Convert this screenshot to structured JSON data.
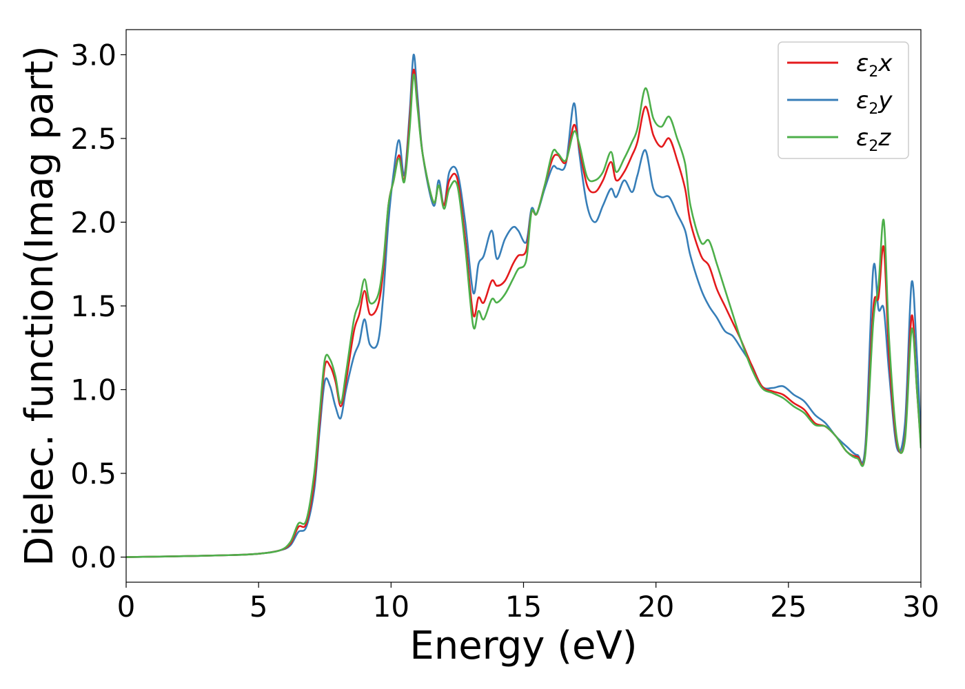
{
  "chart_data": {
    "type": "line",
    "title": "",
    "xlabel": "Energy (eV)",
    "ylabel": "Dielec. function(Imag part)",
    "xlim": [
      0,
      30
    ],
    "ylim": [
      -0.15,
      3.15
    ],
    "xticks": [
      0,
      5,
      10,
      15,
      20,
      25,
      30
    ],
    "yticks": [
      0.0,
      0.5,
      1.0,
      1.5,
      2.0,
      2.5,
      3.0
    ],
    "xtick_labels": [
      "0",
      "5",
      "10",
      "15",
      "20",
      "25",
      "30"
    ],
    "ytick_labels": [
      "0.0",
      "0.5",
      "1.0",
      "1.5",
      "2.0",
      "2.5",
      "3.0"
    ],
    "grid": false,
    "legend_position": "top-right",
    "series": [
      {
        "name": "ε₂x",
        "legend_base": "ε",
        "legend_sub": "2",
        "legend_tail": "x",
        "color": "#e41a1c",
        "points": [
          [
            0,
            0.0
          ],
          [
            2,
            0.005
          ],
          [
            4,
            0.012
          ],
          [
            5,
            0.02
          ],
          [
            5.8,
            0.04
          ],
          [
            6.2,
            0.08
          ],
          [
            6.5,
            0.18
          ],
          [
            6.8,
            0.2
          ],
          [
            7.1,
            0.45
          ],
          [
            7.3,
            0.8
          ],
          [
            7.5,
            1.14
          ],
          [
            7.7,
            1.14
          ],
          [
            7.9,
            1.05
          ],
          [
            8.1,
            0.9
          ],
          [
            8.3,
            1.05
          ],
          [
            8.6,
            1.35
          ],
          [
            8.8,
            1.45
          ],
          [
            9.0,
            1.59
          ],
          [
            9.2,
            1.45
          ],
          [
            9.5,
            1.5
          ],
          [
            9.7,
            1.7
          ],
          [
            9.9,
            2.1
          ],
          [
            10.1,
            2.25
          ],
          [
            10.3,
            2.4
          ],
          [
            10.5,
            2.25
          ],
          [
            10.7,
            2.6
          ],
          [
            10.85,
            2.91
          ],
          [
            11.0,
            2.7
          ],
          [
            11.2,
            2.4
          ],
          [
            11.6,
            2.12
          ],
          [
            11.8,
            2.22
          ],
          [
            12.0,
            2.1
          ],
          [
            12.2,
            2.25
          ],
          [
            12.5,
            2.26
          ],
          [
            12.8,
            1.9
          ],
          [
            13.1,
            1.45
          ],
          [
            13.3,
            1.55
          ],
          [
            13.5,
            1.52
          ],
          [
            13.8,
            1.65
          ],
          [
            14.0,
            1.62
          ],
          [
            14.3,
            1.65
          ],
          [
            14.6,
            1.75
          ],
          [
            14.8,
            1.8
          ],
          [
            15.1,
            1.83
          ],
          [
            15.3,
            2.06
          ],
          [
            15.5,
            2.05
          ],
          [
            15.8,
            2.22
          ],
          [
            16.1,
            2.38
          ],
          [
            16.3,
            2.4
          ],
          [
            16.6,
            2.36
          ],
          [
            16.9,
            2.58
          ],
          [
            17.1,
            2.45
          ],
          [
            17.4,
            2.22
          ],
          [
            17.7,
            2.18
          ],
          [
            18.0,
            2.25
          ],
          [
            18.3,
            2.36
          ],
          [
            18.5,
            2.25
          ],
          [
            18.8,
            2.3
          ],
          [
            19.1,
            2.4
          ],
          [
            19.3,
            2.48
          ],
          [
            19.6,
            2.69
          ],
          [
            19.9,
            2.52
          ],
          [
            20.2,
            2.45
          ],
          [
            20.5,
            2.5
          ],
          [
            20.8,
            2.37
          ],
          [
            21.1,
            2.2
          ],
          [
            21.3,
            2.0
          ],
          [
            21.7,
            1.8
          ],
          [
            22.0,
            1.74
          ],
          [
            22.3,
            1.6
          ],
          [
            22.6,
            1.5
          ],
          [
            22.9,
            1.4
          ],
          [
            23.2,
            1.3
          ],
          [
            23.6,
            1.15
          ],
          [
            24.0,
            1.02
          ],
          [
            24.4,
            0.99
          ],
          [
            24.8,
            0.97
          ],
          [
            25.2,
            0.92
          ],
          [
            25.6,
            0.88
          ],
          [
            26.0,
            0.8
          ],
          [
            26.4,
            0.78
          ],
          [
            26.8,
            0.72
          ],
          [
            27.2,
            0.63
          ],
          [
            27.6,
            0.6
          ],
          [
            27.9,
            0.62
          ],
          [
            28.2,
            1.48
          ],
          [
            28.4,
            1.55
          ],
          [
            28.6,
            1.85
          ],
          [
            28.8,
            1.2
          ],
          [
            29.1,
            0.68
          ],
          [
            29.4,
            0.72
          ],
          [
            29.65,
            1.44
          ],
          [
            29.85,
            1.0
          ],
          [
            30.0,
            0.67
          ]
        ]
      },
      {
        "name": "ε₂y",
        "legend_base": "ε",
        "legend_sub": "2",
        "legend_tail": "y",
        "color": "#377eb8",
        "points": [
          [
            0,
            0.0
          ],
          [
            2,
            0.005
          ],
          [
            4,
            0.012
          ],
          [
            5,
            0.02
          ],
          [
            5.8,
            0.04
          ],
          [
            6.2,
            0.07
          ],
          [
            6.5,
            0.15
          ],
          [
            6.8,
            0.18
          ],
          [
            7.1,
            0.4
          ],
          [
            7.3,
            0.75
          ],
          [
            7.5,
            1.05
          ],
          [
            7.7,
            1.02
          ],
          [
            7.9,
            0.9
          ],
          [
            8.1,
            0.83
          ],
          [
            8.3,
            1.0
          ],
          [
            8.6,
            1.2
          ],
          [
            8.8,
            1.28
          ],
          [
            9.0,
            1.42
          ],
          [
            9.2,
            1.27
          ],
          [
            9.5,
            1.28
          ],
          [
            9.7,
            1.55
          ],
          [
            9.9,
            2.0
          ],
          [
            10.1,
            2.3
          ],
          [
            10.3,
            2.49
          ],
          [
            10.5,
            2.28
          ],
          [
            10.7,
            2.65
          ],
          [
            10.85,
            3.0
          ],
          [
            11.0,
            2.75
          ],
          [
            11.2,
            2.4
          ],
          [
            11.6,
            2.1
          ],
          [
            11.8,
            2.25
          ],
          [
            12.0,
            2.1
          ],
          [
            12.2,
            2.3
          ],
          [
            12.5,
            2.3
          ],
          [
            12.8,
            2.0
          ],
          [
            13.1,
            1.58
          ],
          [
            13.3,
            1.75
          ],
          [
            13.5,
            1.8
          ],
          [
            13.8,
            1.95
          ],
          [
            14.0,
            1.78
          ],
          [
            14.3,
            1.9
          ],
          [
            14.6,
            1.97
          ],
          [
            14.8,
            1.95
          ],
          [
            15.1,
            1.88
          ],
          [
            15.3,
            2.08
          ],
          [
            15.5,
            2.05
          ],
          [
            15.8,
            2.2
          ],
          [
            16.1,
            2.33
          ],
          [
            16.3,
            2.32
          ],
          [
            16.6,
            2.35
          ],
          [
            16.9,
            2.71
          ],
          [
            17.1,
            2.42
          ],
          [
            17.4,
            2.1
          ],
          [
            17.7,
            2.0
          ],
          [
            18.0,
            2.1
          ],
          [
            18.3,
            2.2
          ],
          [
            18.5,
            2.15
          ],
          [
            18.8,
            2.25
          ],
          [
            19.1,
            2.18
          ],
          [
            19.3,
            2.28
          ],
          [
            19.6,
            2.43
          ],
          [
            19.9,
            2.2
          ],
          [
            20.2,
            2.15
          ],
          [
            20.5,
            2.15
          ],
          [
            20.8,
            2.05
          ],
          [
            21.1,
            1.95
          ],
          [
            21.3,
            1.8
          ],
          [
            21.7,
            1.6
          ],
          [
            22.0,
            1.5
          ],
          [
            22.3,
            1.43
          ],
          [
            22.6,
            1.35
          ],
          [
            22.9,
            1.32
          ],
          [
            23.2,
            1.25
          ],
          [
            23.6,
            1.15
          ],
          [
            24.0,
            1.02
          ],
          [
            24.4,
            1.01
          ],
          [
            24.8,
            1.02
          ],
          [
            25.2,
            0.97
          ],
          [
            25.6,
            0.93
          ],
          [
            26.0,
            0.85
          ],
          [
            26.4,
            0.8
          ],
          [
            26.8,
            0.72
          ],
          [
            27.2,
            0.66
          ],
          [
            27.6,
            0.61
          ],
          [
            27.9,
            0.66
          ],
          [
            28.2,
            1.72
          ],
          [
            28.4,
            1.48
          ],
          [
            28.6,
            1.48
          ],
          [
            28.8,
            1.1
          ],
          [
            29.1,
            0.65
          ],
          [
            29.4,
            0.8
          ],
          [
            29.65,
            1.64
          ],
          [
            29.85,
            1.2
          ],
          [
            30.0,
            0.7
          ]
        ]
      },
      {
        "name": "ε₂z",
        "legend_base": "ε",
        "legend_sub": "2",
        "legend_tail": "z",
        "color": "#4daf4a",
        "points": [
          [
            0,
            0.0
          ],
          [
            2,
            0.005
          ],
          [
            4,
            0.012
          ],
          [
            5,
            0.02
          ],
          [
            5.8,
            0.04
          ],
          [
            6.2,
            0.09
          ],
          [
            6.5,
            0.2
          ],
          [
            6.8,
            0.22
          ],
          [
            7.1,
            0.5
          ],
          [
            7.3,
            0.85
          ],
          [
            7.5,
            1.18
          ],
          [
            7.7,
            1.18
          ],
          [
            7.9,
            1.08
          ],
          [
            8.1,
            0.92
          ],
          [
            8.3,
            1.1
          ],
          [
            8.6,
            1.42
          ],
          [
            8.8,
            1.52
          ],
          [
            9.0,
            1.66
          ],
          [
            9.2,
            1.52
          ],
          [
            9.5,
            1.56
          ],
          [
            9.7,
            1.75
          ],
          [
            9.9,
            2.1
          ],
          [
            10.1,
            2.25
          ],
          [
            10.3,
            2.38
          ],
          [
            10.5,
            2.24
          ],
          [
            10.7,
            2.55
          ],
          [
            10.85,
            2.88
          ],
          [
            11.0,
            2.68
          ],
          [
            11.2,
            2.4
          ],
          [
            11.6,
            2.12
          ],
          [
            11.8,
            2.22
          ],
          [
            12.0,
            2.08
          ],
          [
            12.2,
            2.2
          ],
          [
            12.5,
            2.22
          ],
          [
            12.8,
            1.85
          ],
          [
            13.1,
            1.38
          ],
          [
            13.3,
            1.47
          ],
          [
            13.5,
            1.42
          ],
          [
            13.8,
            1.54
          ],
          [
            14.0,
            1.52
          ],
          [
            14.3,
            1.57
          ],
          [
            14.6,
            1.66
          ],
          [
            14.8,
            1.72
          ],
          [
            15.1,
            1.77
          ],
          [
            15.3,
            2.06
          ],
          [
            15.5,
            2.05
          ],
          [
            15.8,
            2.22
          ],
          [
            16.1,
            2.42
          ],
          [
            16.3,
            2.41
          ],
          [
            16.6,
            2.37
          ],
          [
            16.9,
            2.54
          ],
          [
            17.1,
            2.47
          ],
          [
            17.4,
            2.27
          ],
          [
            17.7,
            2.25
          ],
          [
            18.0,
            2.3
          ],
          [
            18.3,
            2.42
          ],
          [
            18.5,
            2.3
          ],
          [
            18.8,
            2.38
          ],
          [
            19.1,
            2.48
          ],
          [
            19.3,
            2.56
          ],
          [
            19.6,
            2.8
          ],
          [
            19.9,
            2.62
          ],
          [
            20.2,
            2.57
          ],
          [
            20.5,
            2.63
          ],
          [
            20.8,
            2.5
          ],
          [
            21.1,
            2.35
          ],
          [
            21.3,
            2.1
          ],
          [
            21.7,
            1.88
          ],
          [
            22.0,
            1.89
          ],
          [
            22.3,
            1.75
          ],
          [
            22.6,
            1.6
          ],
          [
            22.9,
            1.45
          ],
          [
            23.2,
            1.3
          ],
          [
            23.6,
            1.13
          ],
          [
            24.0,
            1.01
          ],
          [
            24.4,
            0.98
          ],
          [
            24.8,
            0.95
          ],
          [
            25.2,
            0.9
          ],
          [
            25.6,
            0.86
          ],
          [
            26.0,
            0.79
          ],
          [
            26.4,
            0.78
          ],
          [
            26.8,
            0.72
          ],
          [
            27.2,
            0.63
          ],
          [
            27.6,
            0.59
          ],
          [
            27.9,
            0.61
          ],
          [
            28.2,
            1.4
          ],
          [
            28.4,
            1.62
          ],
          [
            28.6,
            2.01
          ],
          [
            28.8,
            1.3
          ],
          [
            29.1,
            0.7
          ],
          [
            29.4,
            0.7
          ],
          [
            29.65,
            1.36
          ],
          [
            29.85,
            1.0
          ],
          [
            30.0,
            0.65
          ]
        ]
      }
    ]
  }
}
